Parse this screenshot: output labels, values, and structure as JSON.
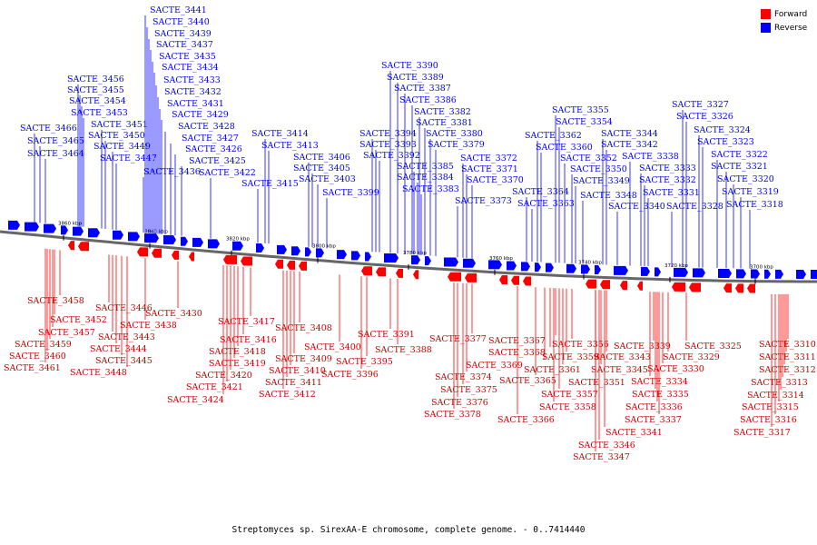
{
  "legend": [
    {
      "label": "Forward",
      "color": "#ff0000"
    },
    {
      "label": "Reverse",
      "color": "#0000ff"
    }
  ],
  "caption": "Streptomyces sp. SirexAA-E chromosome, complete genome. - 0..7414440",
  "scale_ticks": [
    "3860 kbp",
    "3840 kbp",
    "3820 kbp",
    "3800 kbp",
    "3780 kbp",
    "3760 kbp",
    "3740 kbp",
    "3720 kbp",
    "3700 kbp"
  ],
  "reverse_labels": [
    "SACTE_3441",
    "SACTE_3440",
    "SACTE_3439",
    "SACTE_3437",
    "SACTE_3435",
    "SACTE_3434",
    "SACTE_3433",
    "SACTE_3432",
    "SACTE_3431",
    "SACTE_3429",
    "SACTE_3428",
    "SACTE_3427",
    "SACTE_3426",
    "SACTE_3425",
    "SACTE_3422",
    "SACTE_3436",
    "SACTE_3456",
    "SACTE_3455",
    "SACTE_3454",
    "SACTE_3453",
    "SACTE_3451",
    "SACTE_3450",
    "SACTE_3449",
    "SACTE_3447",
    "SACTE_3466",
    "SACTE_3465",
    "SACTE_3464",
    "SACTE_3414",
    "SACTE_3413",
    "SACTE_3415",
    "SACTE_3406",
    "SACTE_3405",
    "SACTE_3403",
    "SACTE_3399",
    "SACTE_3390",
    "SACTE_3389",
    "SACTE_3387",
    "SACTE_3386",
    "SACTE_3382",
    "SACTE_3381",
    "SACTE_3380",
    "SACTE_3379",
    "SACTE_3394",
    "SACTE_3393",
    "SACTE_3392",
    "SACTE_3385",
    "SACTE_3384",
    "SACTE_3383",
    "SACTE_3372",
    "SACTE_3371",
    "SACTE_3370",
    "SACTE_3373",
    "SACTE_3355",
    "SACTE_3354",
    "SACTE_3362",
    "SACTE_3360",
    "SACTE_3352",
    "SACTE_3350",
    "SACTE_3349",
    "SACTE_3348",
    "SACTE_3364",
    "SACTE_3363",
    "SACTE_3344",
    "SACTE_3342",
    "SACTE_3338",
    "SACTE_3333",
    "SACTE_3332",
    "SACTE_3331",
    "SACTE_3340",
    "SACTE_3328",
    "SACTE_3327",
    "SACTE_3326",
    "SACTE_3324",
    "SACTE_3323",
    "SACTE_3322",
    "SACTE_3321",
    "SACTE_3320",
    "SACTE_3319",
    "SACTE_3318"
  ],
  "forward_labels": [
    "SACTE_3458",
    "SACTE_3452",
    "SACTE_3457",
    "SACTE_3459",
    "SACTE_3460",
    "SACTE_3461",
    "SACTE_3446",
    "SACTE_3443",
    "SACTE_3444",
    "SACTE_3445",
    "SACTE_3448",
    "SACTE_3430",
    "SACTE_3438",
    "SACTE_3417",
    "SACTE_3416",
    "SACTE_3418",
    "SACTE_3419",
    "SACTE_3420",
    "SACTE_3421",
    "SACTE_3424",
    "SACTE_3408",
    "SACTE_3409",
    "SACTE_3410",
    "SACTE_3411",
    "SACTE_3412",
    "SACTE_3400",
    "SACTE_3395",
    "SACTE_3396",
    "SACTE_3391",
    "SACTE_3388",
    "SACTE_3377",
    "SACTE_3374",
    "SACTE_3375",
    "SACTE_3376",
    "SACTE_3378",
    "SACTE_3367",
    "SACTE_3368",
    "SACTE_3369",
    "SACTE_3365",
    "SACTE_3366",
    "SACTE_3356",
    "SACTE_3359",
    "SACTE_3361",
    "SACTE_3357",
    "SACTE_3358",
    "SACTE_3351",
    "SACTE_3345",
    "SACTE_3343",
    "SACTE_3346",
    "SACTE_3347",
    "SACTE_3341",
    "SACTE_3339",
    "SACTE_3334",
    "SACTE_3335",
    "SACTE_3336",
    "SACTE_3337",
    "SACTE_3330",
    "SACTE_3329",
    "SACTE_3325",
    "SACTE_3310",
    "SACTE_3311",
    "SACTE_3312",
    "SACTE_3313",
    "SACTE_3314",
    "SACTE_3315",
    "SACTE_3316",
    "SACTE_3317"
  ]
}
